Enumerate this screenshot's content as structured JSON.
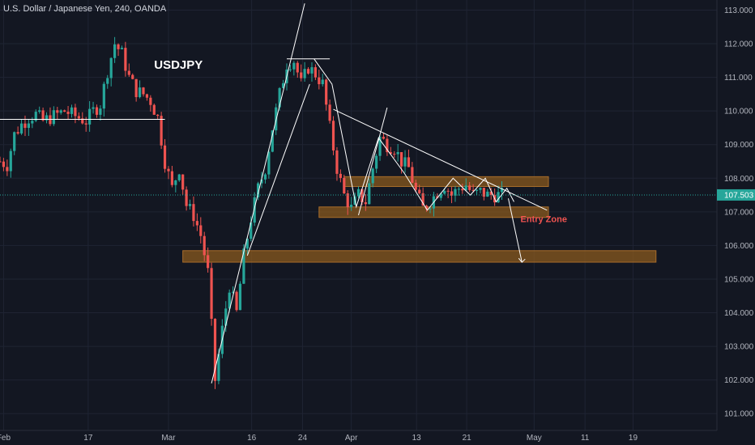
{
  "header": {
    "title": "U.S. Dollar / Japanese Yen, 240, OANDA"
  },
  "chart_data": {
    "type": "candlestick",
    "symbol_label": "USDJPY",
    "annotation": "Entry Zone",
    "current_price": "107.503",
    "ylim": [
      100.5,
      113.3
    ],
    "xlim": [
      0,
      100
    ],
    "y_ticks": [
      "101.000",
      "102.000",
      "103.000",
      "104.000",
      "105.000",
      "106.000",
      "107.000",
      "108.000",
      "109.000",
      "110.000",
      "111.000",
      "112.000",
      "113.000"
    ],
    "x_ticks": [
      {
        "label": "Feb",
        "x": 0.5
      },
      {
        "label": "17",
        "x": 12.3
      },
      {
        "label": "Mar",
        "x": 23.5
      },
      {
        "label": "16",
        "x": 35.1
      },
      {
        "label": "24",
        "x": 42.2
      },
      {
        "label": "Apr",
        "x": 49.0
      },
      {
        "label": "13",
        "x": 58.1
      },
      {
        "label": "21",
        "x": 65.1
      },
      {
        "label": "May",
        "x": 74.5
      },
      {
        "label": "11",
        "x": 81.6
      },
      {
        "label": "19",
        "x": 88.3
      }
    ],
    "price_path": [
      [
        0,
        108.5
      ],
      [
        1,
        108.4
      ],
      [
        2,
        109.3
      ],
      [
        3,
        109.6
      ],
      [
        4,
        109.8
      ],
      [
        5,
        109.9
      ],
      [
        6,
        109.7
      ],
      [
        7,
        109.8
      ],
      [
        8,
        109.9
      ],
      [
        9,
        110.0
      ],
      [
        10,
        109.9
      ],
      [
        11,
        109.8
      ],
      [
        12,
        109.7
      ],
      [
        13,
        110.0
      ],
      [
        14,
        110.2
      ],
      [
        15,
        111.2
      ],
      [
        16,
        112.0
      ],
      [
        17,
        111.7
      ],
      [
        18,
        111.0
      ],
      [
        19,
        110.6
      ],
      [
        20,
        110.5
      ],
      [
        21,
        110.3
      ],
      [
        22,
        109.8
      ],
      [
        23,
        108.5
      ],
      [
        24,
        107.7
      ],
      [
        25,
        108.3
      ],
      [
        26,
        107.2
      ],
      [
        27,
        106.9
      ],
      [
        28,
        106.3
      ],
      [
        29,
        105.2
      ],
      [
        30,
        102.0
      ],
      [
        31,
        103.5
      ],
      [
        32,
        104.8
      ],
      [
        33,
        104.0
      ],
      [
        34,
        105.7
      ],
      [
        35,
        106.8
      ],
      [
        36,
        107.7
      ],
      [
        37,
        108.3
      ],
      [
        38,
        109.5
      ],
      [
        39,
        110.5
      ],
      [
        40,
        111.4
      ],
      [
        41,
        111.5
      ],
      [
        42,
        110.8
      ],
      [
        43,
        111.3
      ],
      [
        44,
        111.1
      ],
      [
        45,
        110.8
      ],
      [
        46,
        109.5
      ],
      [
        47,
        108.3
      ],
      [
        48,
        107.5
      ],
      [
        49,
        107.1
      ],
      [
        50,
        107.5
      ],
      [
        51,
        107.3
      ],
      [
        52,
        108.3
      ],
      [
        53,
        109.2
      ],
      [
        54,
        109.0
      ],
      [
        55,
        108.9
      ],
      [
        56,
        108.5
      ],
      [
        57,
        108.3
      ],
      [
        58,
        107.6
      ],
      [
        59,
        107.1
      ],
      [
        60,
        107.3
      ],
      [
        61,
        107.6
      ],
      [
        62,
        107.8
      ],
      [
        63,
        107.5
      ],
      [
        64,
        107.7
      ],
      [
        65,
        107.8
      ],
      [
        66,
        107.5
      ],
      [
        67,
        107.6
      ],
      [
        68,
        107.5
      ],
      [
        69,
        107.5
      ],
      [
        70,
        107.5
      ]
    ],
    "zones": [
      {
        "x": [
          48.0,
          76.5
        ],
        "y": [
          107.85,
          107.95
        ]
      },
      {
        "x": [
          44.5,
          76.5
        ],
        "y": [
          106.93,
          107.05
        ]
      },
      {
        "x": [
          25.5,
          91.5
        ],
        "y": [
          105.6,
          105.75
        ]
      }
    ],
    "lines": [
      {
        "x": [
          0,
          23.0
        ],
        "y": [
          109.75,
          109.75
        ],
        "color": "#ffffff"
      },
      {
        "x": [
          40.0,
          46.0
        ],
        "y": [
          111.55,
          111.55
        ],
        "color": "#ffffff"
      },
      {
        "x": [
          29.5,
          42.5
        ],
        "y": [
          101.9,
          113.2
        ],
        "color": "#ffffff"
      },
      {
        "x": [
          34.5,
          43.2
        ],
        "y": [
          105.7,
          110.8
        ],
        "color": "#ffffff"
      },
      {
        "x": [
          46.5,
          76.3
        ],
        "y": [
          110.05,
          107.05
        ],
        "color": "#ffffff"
      },
      {
        "x": [
          43.8,
          46.3,
          49.7,
          52.8,
          56.4,
          59.6,
          63.2,
          65.6,
          67.7,
          69.2,
          70.7,
          71.7
        ],
        "y": [
          111.55,
          110.8,
          107.15,
          109.2,
          108.15,
          107.05,
          108.0,
          107.5,
          108.0,
          107.3,
          107.7,
          107.3
        ],
        "color": "#ffffff"
      },
      {
        "x": [
          50.0,
          54.0
        ],
        "y": [
          106.9,
          110.1
        ],
        "color": "#ffffff"
      },
      {
        "x": [
          70.9,
          72.8
        ],
        "y": [
          107.4,
          105.5
        ],
        "color": "#ffffff"
      }
    ]
  }
}
